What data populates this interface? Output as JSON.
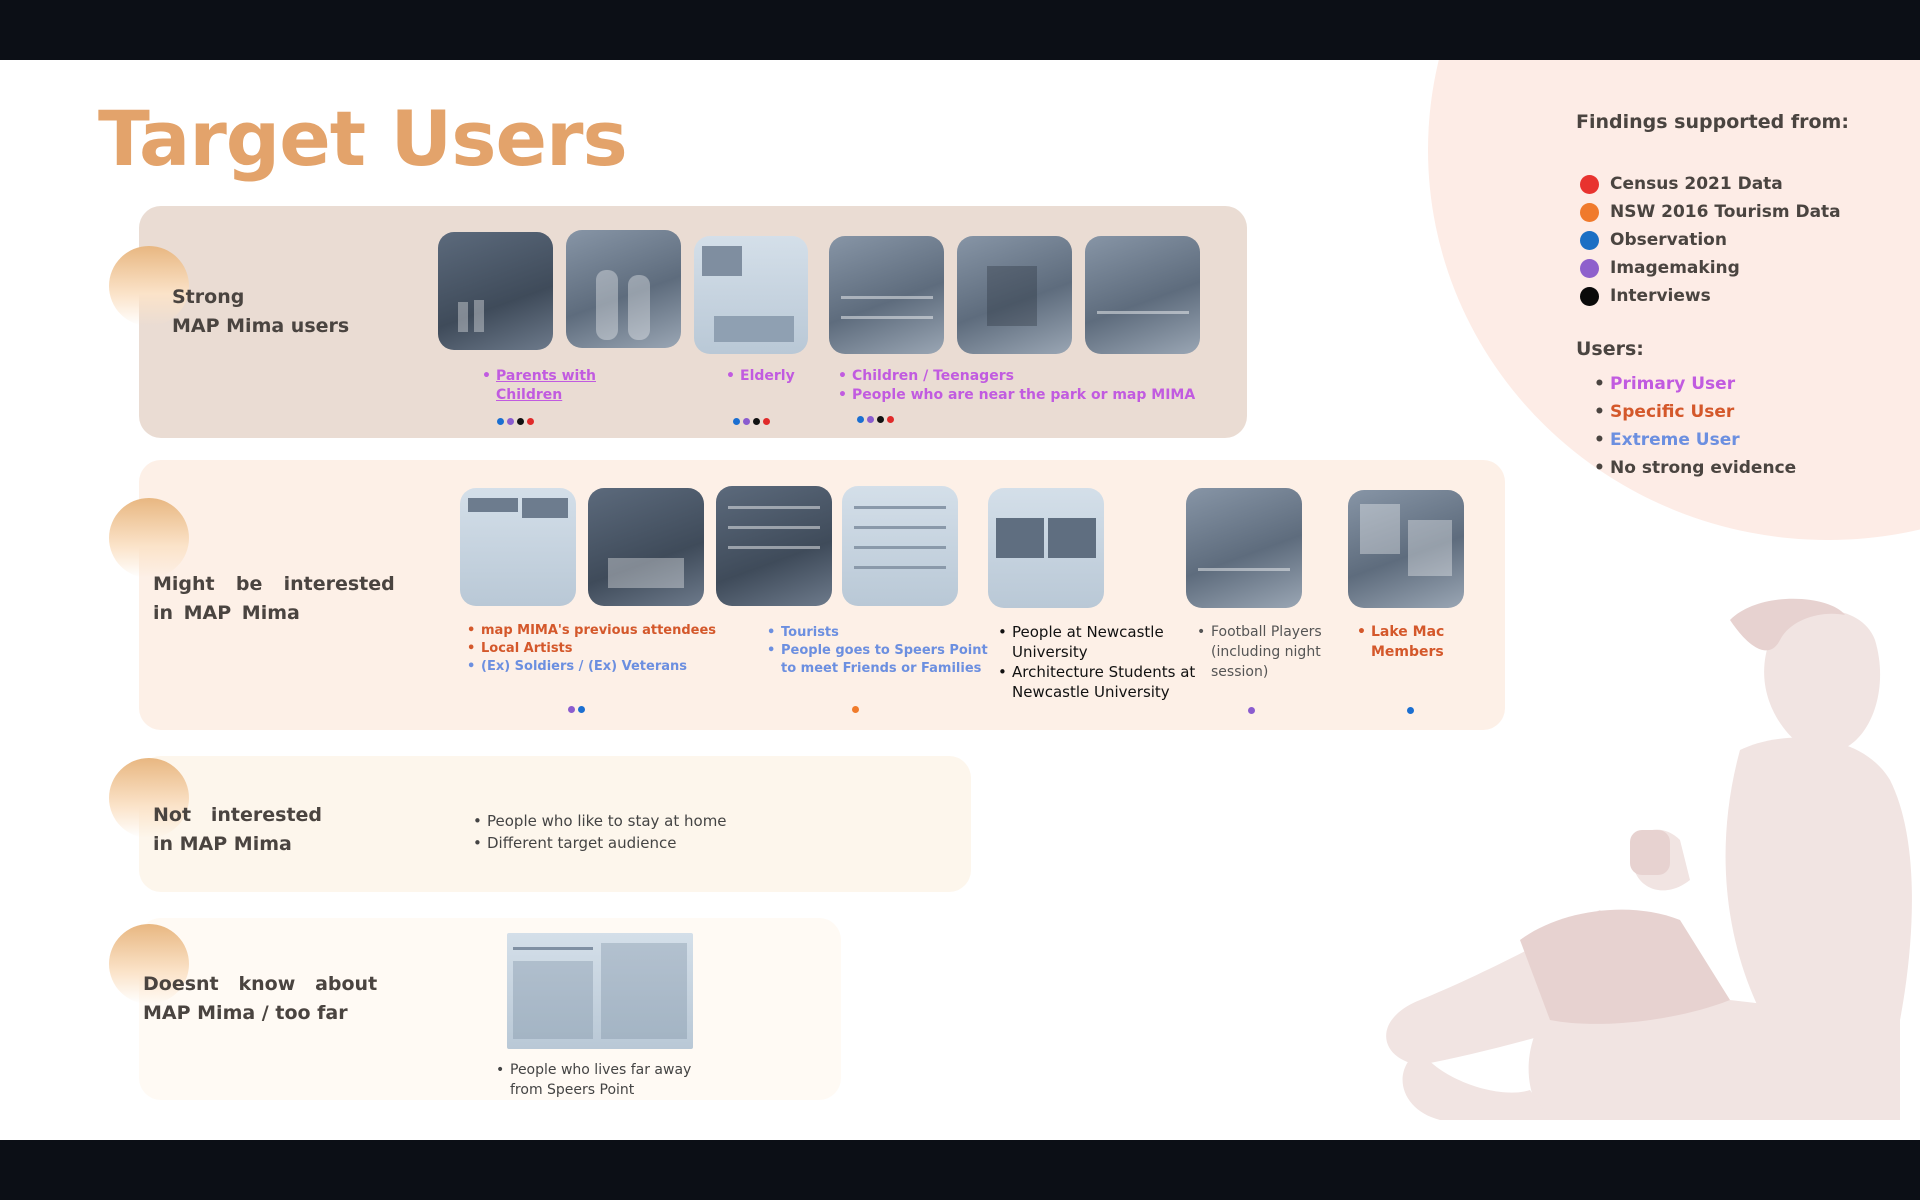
{
  "title": "Target Users",
  "sections": [
    {
      "label": "Strong\nMAP Mima users"
    },
    {
      "label": "Might  be  interested\nin MAP Mima"
    },
    {
      "label": "Not   interested\nin MAP Mima"
    },
    {
      "label": "Doesnt   know   about\nMAP Mima / too far"
    }
  ],
  "strong": {
    "groups": [
      {
        "items": [
          "Parents with\nChildren"
        ],
        "dots": [
          "#1b6fd1",
          "#8a5ccf",
          "#111111",
          "#e02a2a"
        ]
      },
      {
        "items": [
          "Elderly"
        ],
        "dots": [
          "#1b6fd1",
          "#8a5ccf",
          "#111111",
          "#e02a2a"
        ]
      },
      {
        "items": [
          "Children / Teenagers",
          "People who are near the park or map MIMA"
        ],
        "dots": [
          "#1b6fd1",
          "#8a5ccf",
          "#111111",
          "#e02a2a"
        ]
      }
    ]
  },
  "might": {
    "groups": [
      {
        "items": [
          "map MIMA's previous attendees",
          "Local Artists",
          "(Ex) Soldiers / (Ex) Veterans"
        ],
        "dots": [
          "#8a5ccf",
          "#1b6fd1"
        ]
      },
      {
        "items": [
          "Tourists",
          "People goes to Speers Point\nto meet Friends or Families"
        ],
        "dots": [
          "#f07b2b"
        ]
      },
      {
        "items": [
          "People at Newcastle\nUniversity",
          "Architecture Students at\nNewcastle University"
        ],
        "dots": []
      },
      {
        "items": [
          "Football Players\n(including night\nsession)"
        ],
        "dots": [
          "#8a5ccf"
        ]
      },
      {
        "items": [
          "Lake Mac\nMembers"
        ],
        "dots": [
          "#1b6fd1"
        ]
      }
    ]
  },
  "not_interested": {
    "items": [
      "People who like to stay at home",
      "Different target audience"
    ]
  },
  "far": {
    "items": [
      "People who lives far away\nfrom Speers Point"
    ]
  },
  "legend": {
    "title": "Findings supported from:",
    "items": [
      {
        "label": "Census 2021 Data",
        "color": "#e8332f"
      },
      {
        "label": "NSW 2016 Tourism Data",
        "color": "#f07a2c"
      },
      {
        "label": "Observation",
        "color": "#1c6fc4"
      },
      {
        "label": "Imagemaking",
        "color": "#8e60cc"
      },
      {
        "label": "Interviews",
        "color": "#0a0a0a"
      }
    ]
  },
  "users": {
    "title": "Users:",
    "items": [
      {
        "label": "Primary User",
        "color": "#c15be0"
      },
      {
        "label": "Specific User",
        "color": "#d4582b"
      },
      {
        "label": "Extreme User",
        "color": "#6c8fe0"
      },
      {
        "label": "No strong evidence",
        "color": "#4a4440"
      }
    ]
  }
}
